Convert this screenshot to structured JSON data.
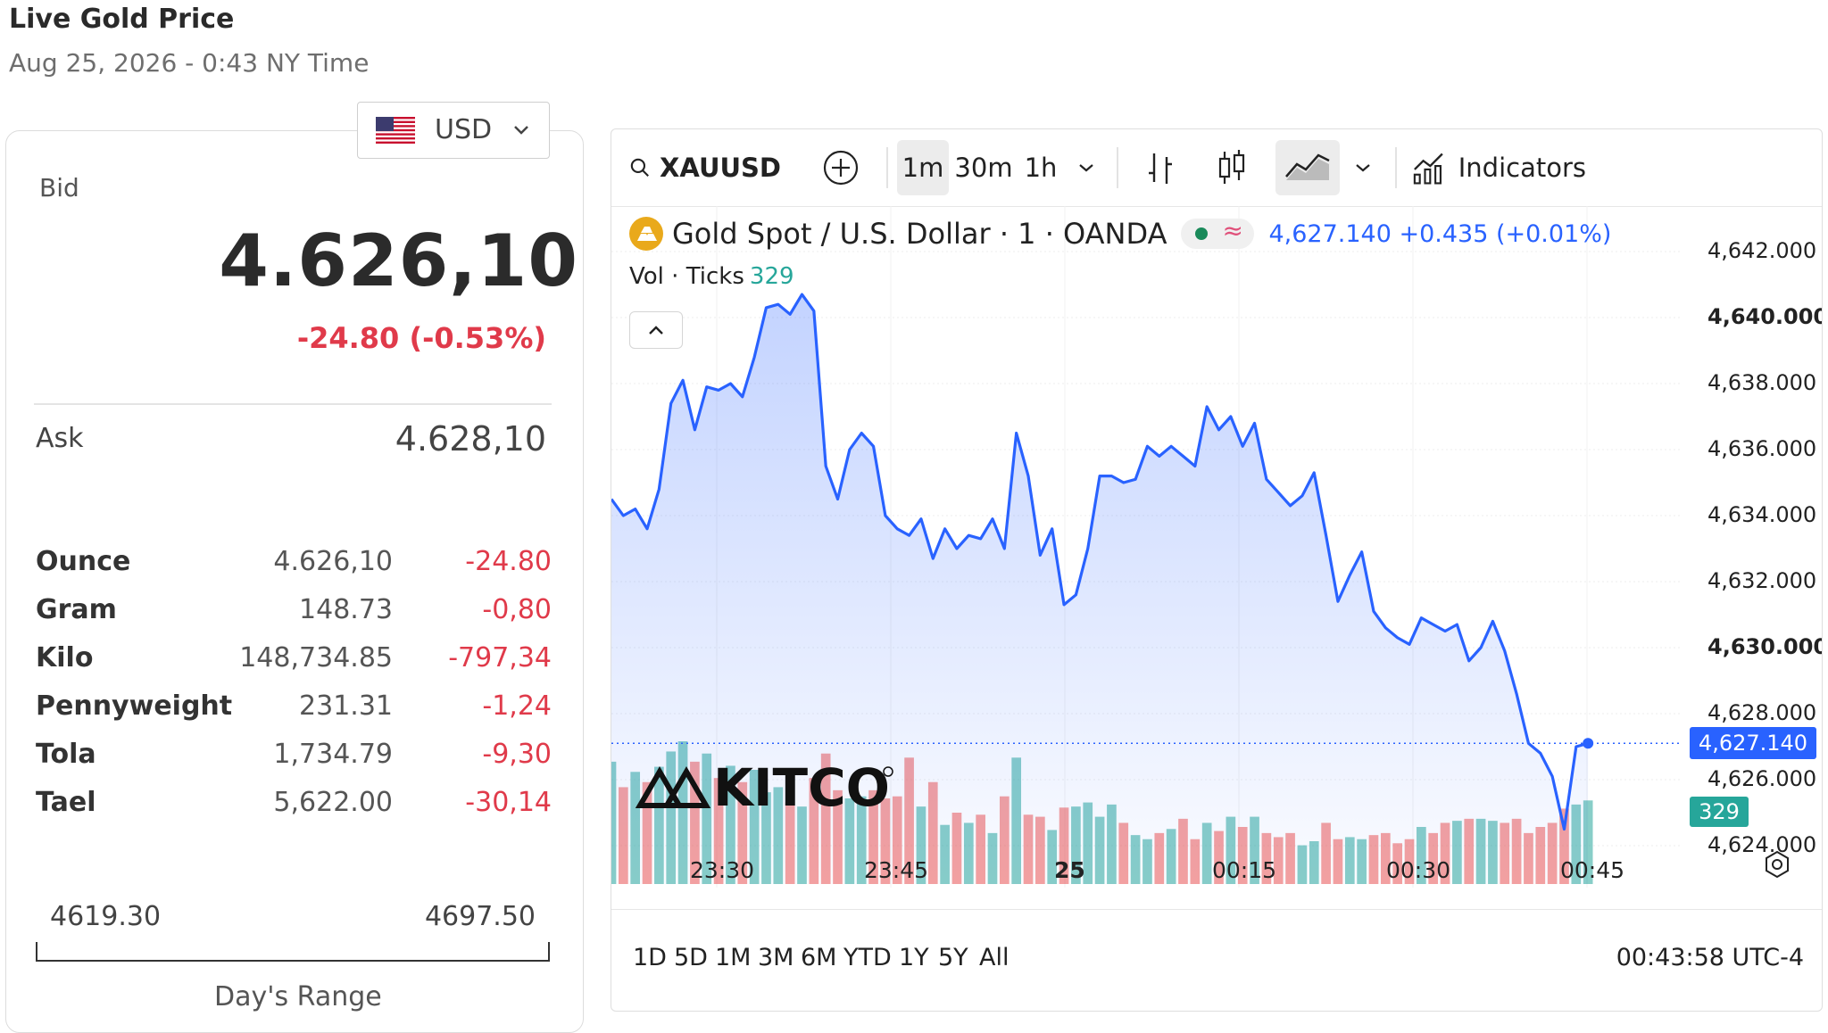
{
  "header": {
    "title": "Live Gold Price",
    "subtitle": "Aug 25, 2026 - 0:43 NY Time"
  },
  "currency": {
    "label": "USD",
    "flag": "us-flag-icon"
  },
  "bid": {
    "label": "Bid",
    "value": "4.626,10",
    "change": "-24.80 (-0.53%)"
  },
  "ask": {
    "label": "Ask",
    "value": "4.628,10"
  },
  "weights": [
    {
      "name": "Ounce",
      "price": "4.626,10",
      "change": "-24.80"
    },
    {
      "name": "Gram",
      "price": "148.73",
      "change": "-0,80"
    },
    {
      "name": "Kilo",
      "price": "148,734.85",
      "change": "-797,34"
    },
    {
      "name": "Pennyweight",
      "price": "231.31",
      "change": "-1,24"
    },
    {
      "name": "Tola",
      "price": "1,734.79",
      "change": "-9,30"
    },
    {
      "name": "Tael",
      "price": "5,622.00",
      "change": "-30,14"
    }
  ],
  "day_range": {
    "low": "4619.30",
    "high": "4697.50",
    "label": "Day's Range"
  },
  "toolbar": {
    "symbol": "XAUUSD",
    "intervals": [
      "1m",
      "30m",
      "1h"
    ],
    "selected_interval": "1m",
    "indicators_label": "Indicators"
  },
  "legend": {
    "symbol_name": "Gold Spot / U.S. Dollar · 1 · OANDA",
    "quote": "4,627.140 +0.435 (+0.01%)",
    "vol_label": "Vol · Ticks",
    "vol_value": "329"
  },
  "watermark": "KITCO",
  "ranges": [
    "1D",
    "5D",
    "1M",
    "3M",
    "6M",
    "YTD",
    "1Y",
    "5Y",
    "All"
  ],
  "clock": "00:43:58 UTC-4",
  "colors": {
    "line": "#2962ff",
    "vol_up": "#26a69a",
    "vol_down": "#ef5350",
    "negative": "#e03a4a"
  },
  "chart_data": {
    "type": "area",
    "title": "Gold Spot / U.S. Dollar · 1 · OANDA",
    "x_ticks": [
      "23:30",
      "23:45",
      "25",
      "00:15",
      "00:30",
      "00:45"
    ],
    "y_ticks": [
      "4,642.000",
      "4,640.000",
      "4,638.000",
      "4,636.000",
      "4,634.000",
      "4,632.000",
      "4,630.000",
      "4,628.000",
      "4,626.000",
      "4,624.000"
    ],
    "y_bold_ticks": [
      "4,640.000",
      "4,630.000"
    ],
    "ylim": [
      4623.0,
      4643.0
    ],
    "last_price_label": "4,627.140",
    "last_volume_label": "329",
    "price": [
      4634.5,
      4634.0,
      4634.2,
      4633.6,
      4634.8,
      4637.4,
      4638.1,
      4636.6,
      4637.9,
      4637.8,
      4638.0,
      4637.6,
      4638.8,
      4640.3,
      4640.4,
      4640.1,
      4640.7,
      4640.2,
      4635.5,
      4634.5,
      4636.0,
      4636.5,
      4636.1,
      4634.0,
      4633.6,
      4633.4,
      4633.9,
      4632.7,
      4633.6,
      4633.0,
      4633.4,
      4633.3,
      4633.9,
      4633.0,
      4636.5,
      4635.2,
      4632.8,
      4633.6,
      4631.3,
      4631.6,
      4633.0,
      4635.2,
      4635.2,
      4635.0,
      4635.1,
      4636.1,
      4635.8,
      4636.1,
      4635.8,
      4635.5,
      4637.3,
      4636.6,
      4637.0,
      4636.1,
      4636.8,
      4635.1,
      4634.7,
      4634.3,
      4634.6,
      4635.3,
      4633.4,
      4631.4,
      4632.2,
      4632.9,
      4631.1,
      4630.6,
      4630.3,
      4630.1,
      4630.9,
      4630.7,
      4630.5,
      4630.7,
      4629.6,
      4630.0,
      4630.8,
      4629.9,
      4628.6,
      4627.1,
      4626.8,
      4626.1,
      4624.5,
      4627.0,
      4627.1
    ],
    "volume": [
      120,
      95,
      110,
      100,
      115,
      130,
      140,
      120,
      128,
      104,
      116,
      100,
      112,
      90,
      95,
      80,
      76,
      104,
      128,
      92,
      84,
      86,
      92,
      84,
      86,
      124,
      76,
      100,
      58,
      70,
      60,
      68,
      50,
      86,
      124,
      68,
      66,
      53,
      75,
      76,
      80,
      66,
      78,
      60,
      48,
      44,
      50,
      54,
      64,
      44,
      60,
      52,
      66,
      56,
      66,
      50,
      46,
      50,
      38,
      42,
      60,
      44,
      46,
      44,
      48,
      50,
      40,
      44,
      56,
      50,
      60,
      62,
      64,
      64,
      62,
      60,
      64,
      50,
      56,
      60,
      74,
      78,
      82
    ]
  }
}
